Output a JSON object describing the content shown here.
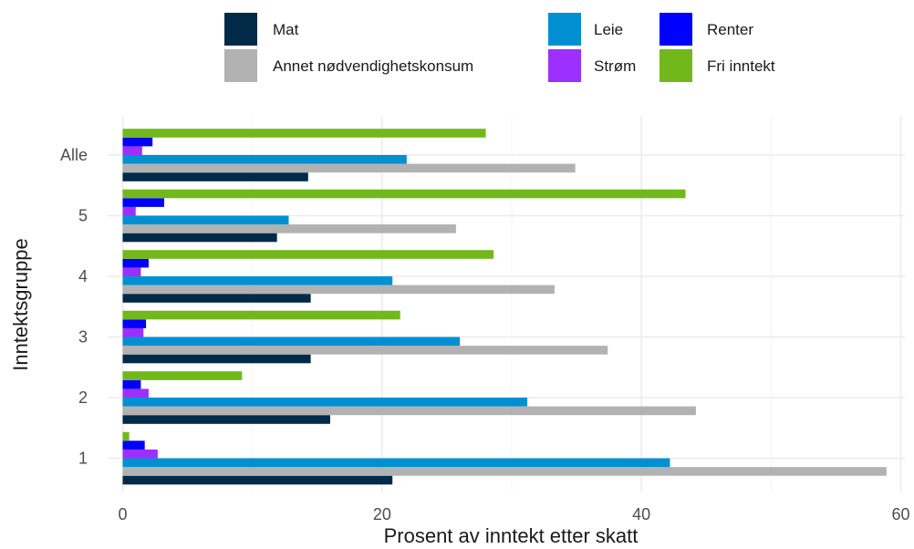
{
  "chart_data": {
    "type": "bar",
    "orientation": "horizontal",
    "xlabel": "Prosent av inntekt etter skatt",
    "ylabel": "Inntektsgruppe",
    "xlim": [
      0,
      60
    ],
    "x_ticks": [
      0,
      20,
      40,
      60
    ],
    "categories": [
      "1",
      "2",
      "3",
      "4",
      "5",
      "Alle"
    ],
    "grid": true,
    "legend_position": "top",
    "series": [
      {
        "name": "Mat",
        "color": "#002a48",
        "values": [
          20.8,
          16.0,
          14.5,
          14.5,
          11.9,
          14.3
        ]
      },
      {
        "name": "Annet nødvendighetskonsum",
        "color": "#b2b2b2",
        "values": [
          58.9,
          44.2,
          37.4,
          33.3,
          25.7,
          34.9
        ]
      },
      {
        "name": "Leie",
        "color": "#0090d2",
        "values": [
          42.2,
          31.2,
          26.0,
          20.8,
          12.8,
          21.9
        ]
      },
      {
        "name": "Strøm",
        "color": "#9b30ff",
        "values": [
          2.7,
          2.0,
          1.6,
          1.4,
          1.0,
          1.5
        ]
      },
      {
        "name": "Renter",
        "color": "#0000ff",
        "values": [
          1.7,
          1.4,
          1.8,
          2.0,
          3.2,
          2.3
        ]
      },
      {
        "name": "Fri inntekt",
        "color": "#72b81c",
        "values": [
          0.5,
          9.2,
          21.4,
          28.6,
          43.4,
          28.0
        ]
      }
    ],
    "legend_layout": [
      [
        "Mat",
        "Leie",
        "Renter"
      ],
      [
        "Annet nødvendighetskonsum",
        "Strøm",
        "Fri inntekt"
      ]
    ]
  }
}
